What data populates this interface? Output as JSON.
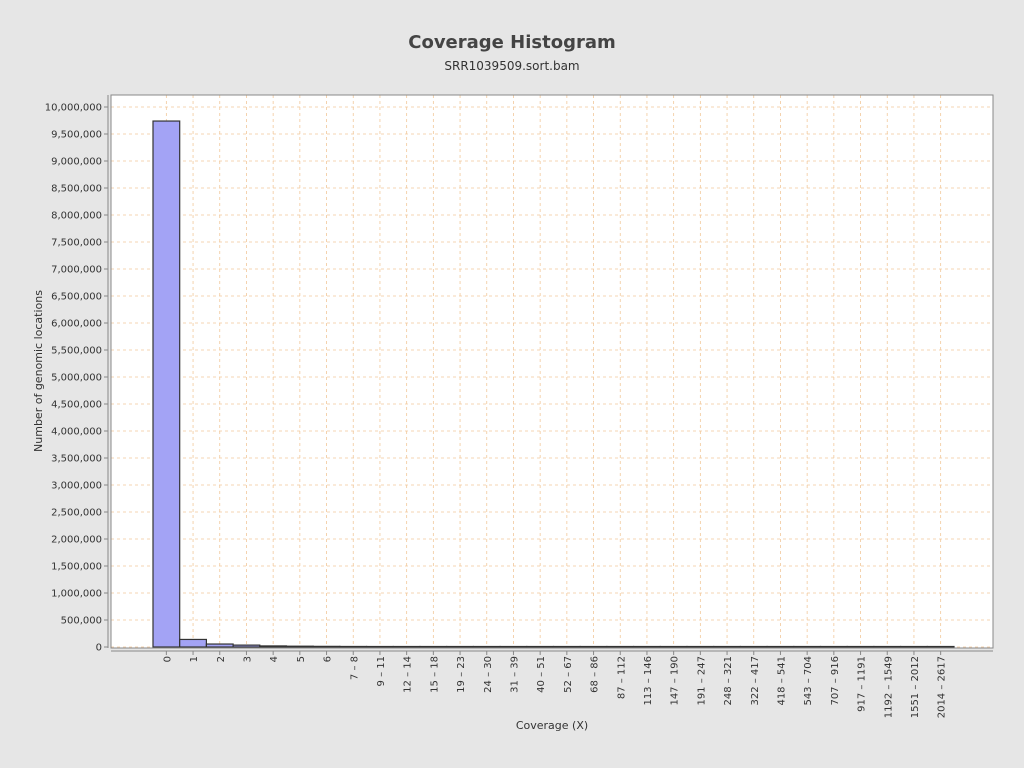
{
  "chart_data": {
    "type": "bar",
    "title": "Coverage Histogram",
    "subtitle": "SRR1039509.sort.bam",
    "xlabel": "Coverage (X)",
    "ylabel": "Number of genomic locations",
    "ylim": [
      0,
      10200000
    ],
    "y_ticks": [
      0,
      500000,
      1000000,
      1500000,
      2000000,
      2500000,
      3000000,
      3500000,
      4000000,
      4500000,
      5000000,
      5500000,
      6000000,
      6500000,
      7000000,
      7500000,
      8000000,
      8500000,
      9000000,
      9500000,
      10000000
    ],
    "y_tick_labels": [
      "0",
      "500,000",
      "1,000,000",
      "1,500,000",
      "2,000,000",
      "2,500,000",
      "3,000,000",
      "3,500,000",
      "4,000,000",
      "4,500,000",
      "5,000,000",
      "5,500,000",
      "6,000,000",
      "6,500,000",
      "7,000,000",
      "7,500,000",
      "8,000,000",
      "8,500,000",
      "9,000,000",
      "9,500,000",
      "10,000,000"
    ],
    "categories": [
      "0",
      "1",
      "2",
      "3",
      "4",
      "5",
      "6",
      "7 – 8",
      "9 – 11",
      "12 – 14",
      "15 – 18",
      "19 – 23",
      "24 – 30",
      "31 – 39",
      "40 – 51",
      "52 – 67",
      "68 – 86",
      "87 – 112",
      "113 – 146",
      "147 – 190",
      "191 – 247",
      "248 – 321",
      "322 – 417",
      "418 – 541",
      "543 – 704",
      "707 – 916",
      "917 – 1191",
      "1192 – 1549",
      "1551 – 2012",
      "2014 – 2617"
    ],
    "values": [
      9740000,
      140000,
      55000,
      35000,
      20000,
      15000,
      12000,
      10000,
      8000,
      6000,
      5000,
      4000,
      3000,
      2500,
      2000,
      1500,
      500,
      300,
      200,
      150,
      100,
      80,
      60,
      40,
      30,
      20,
      15,
      10,
      5,
      3
    ],
    "grid": true,
    "legend": "none",
    "colors": {
      "bar_fill": "#a3a3f5",
      "bar_stroke": "#333333",
      "grid": "#f2c89a",
      "plot_background": "#ffffff",
      "page_background": "#e6e6e6"
    }
  }
}
